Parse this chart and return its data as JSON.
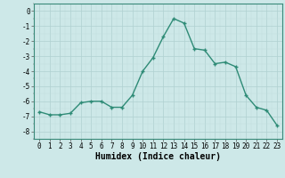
{
  "x": [
    0,
    1,
    2,
    3,
    4,
    5,
    6,
    7,
    8,
    9,
    10,
    11,
    12,
    13,
    14,
    15,
    16,
    17,
    18,
    19,
    20,
    21,
    22,
    23
  ],
  "y": [
    -6.7,
    -6.9,
    -6.9,
    -6.8,
    -6.1,
    -6.0,
    -6.0,
    -6.4,
    -6.4,
    -5.6,
    -4.0,
    -3.1,
    -1.7,
    -0.5,
    -0.8,
    -2.5,
    -2.6,
    -3.5,
    -3.4,
    -3.7,
    -5.6,
    -6.4,
    -6.6,
    -7.6
  ],
  "line_color": "#2e8b76",
  "marker_color": "#2e8b76",
  "bg_color": "#cde8e8",
  "grid_major_color": "#b0d0d0",
  "grid_minor_color": "#c0dcdc",
  "xlabel": "Humidex (Indice chaleur)",
  "xlim": [
    -0.5,
    23.5
  ],
  "ylim": [
    -8.5,
    0.5
  ],
  "yticks": [
    0,
    -1,
    -2,
    -3,
    -4,
    -5,
    -6,
    -7,
    -8
  ],
  "xticks": [
    0,
    1,
    2,
    3,
    4,
    5,
    6,
    7,
    8,
    9,
    10,
    11,
    12,
    13,
    14,
    15,
    16,
    17,
    18,
    19,
    20,
    21,
    22,
    23
  ],
  "tick_fontsize": 5.5,
  "xlabel_fontsize": 7.0,
  "spine_color": "#3a8a7a"
}
